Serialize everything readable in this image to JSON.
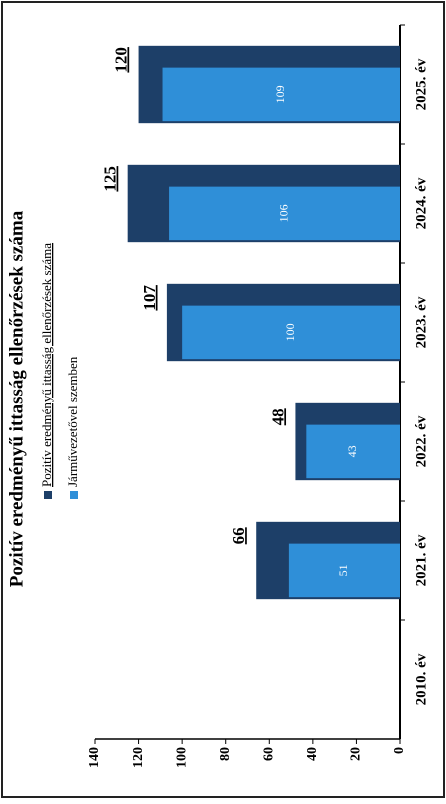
{
  "chart_data": {
    "type": "bar",
    "title": "Pozitív eredményű ittasság ellenőrzések száma",
    "categories": [
      "2010. év",
      "2021. év",
      "2022. év",
      "2023. év",
      "2024. év",
      "2025. év"
    ],
    "series": [
      {
        "name": "Pozitív eredményű ittasság ellenőrzések száma",
        "color": "#1d3f68",
        "values": [
          null,
          66,
          48,
          107,
          125,
          120
        ]
      },
      {
        "name": "Járművezetővel szemben",
        "color": "#2f8fd8",
        "values": [
          null,
          51,
          43,
          100,
          106,
          109
        ]
      }
    ],
    "ylim": [
      0,
      140
    ],
    "yticks": [
      0,
      20,
      40,
      60,
      80,
      100,
      120,
      140
    ],
    "grid": false
  }
}
